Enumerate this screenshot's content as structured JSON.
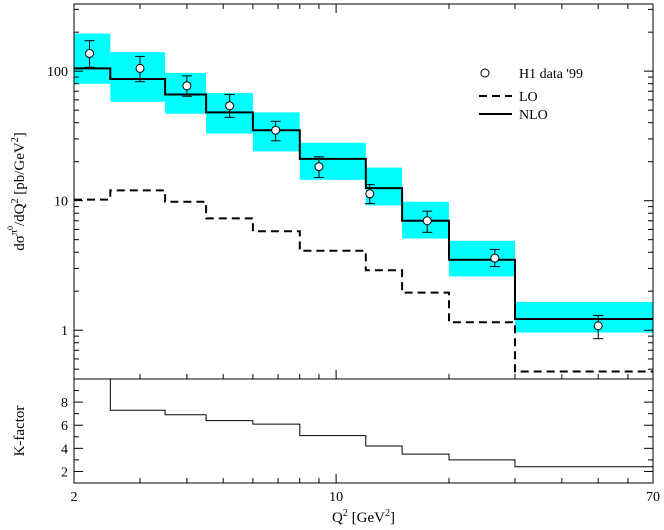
{
  "chart_data": [
    {
      "type": "line",
      "panel": "top",
      "xscale": "log",
      "yscale": "log",
      "xlim": [
        2,
        70
      ],
      "ylim": [
        0.42,
        330
      ],
      "ylabel": "dσ^π0/dQ^2 [pb/GeV^2]",
      "yticks": [
        1,
        10,
        100
      ],
      "ytick_labels": [
        "1",
        "10",
        "100"
      ],
      "bin_edges": [
        2,
        2.5,
        3.5,
        4.5,
        6,
        8,
        12,
        15,
        20,
        30,
        70
      ],
      "series": [
        {
          "name": "H1 data '99",
          "kind": "points",
          "x": [
            2.2,
            3.0,
            4.0,
            5.2,
            6.9,
            9.0,
            12.3,
            17.5,
            26.5,
            50.0
          ],
          "y": [
            137,
            105,
            77,
            54,
            35,
            18.3,
            11.3,
            7.0,
            3.6,
            1.08
          ],
          "yerr_low": [
            30,
            22,
            13,
            10,
            6,
            3.2,
            1.8,
            1.3,
            0.5,
            0.22
          ],
          "yerr_high": [
            35,
            25,
            15,
            12,
            6,
            3.5,
            2.0,
            1.3,
            0.6,
            0.22
          ]
        },
        {
          "name": "LO",
          "kind": "step",
          "style": "dashed",
          "values": [
            10.2,
            12.0,
            9.8,
            7.3,
            5.8,
            4.1,
            2.9,
            1.95,
            1.15,
            0.48
          ]
        },
        {
          "name": "NLO",
          "kind": "step",
          "style": "solid",
          "values": [
            105,
            87,
            66,
            48,
            35,
            21,
            12.5,
            7.0,
            3.5,
            1.22
          ],
          "band_low": [
            80,
            58,
            47,
            33,
            24,
            14.5,
            9.2,
            5.1,
            2.6,
            0.96
          ],
          "band_high": [
            195,
            140,
            97,
            68,
            48,
            28,
            18,
            9.8,
            4.9,
            1.65
          ]
        }
      ],
      "band_color": "#00ffff"
    },
    {
      "type": "line",
      "panel": "bottom",
      "xscale": "log",
      "xlim": [
        2,
        70
      ],
      "ylim": [
        1,
        10
      ],
      "xlabel": "Q^2 [GeV^2]",
      "ylabel": "K-factor",
      "yticks": [
        2,
        4,
        6,
        8
      ],
      "ytick_labels": [
        "2",
        "4",
        "6",
        "8"
      ],
      "xticks": [
        2,
        10,
        70
      ],
      "xtick_labels": [
        "2",
        "10",
        "70"
      ],
      "bin_edges": [
        2.5,
        3.5,
        4.5,
        6,
        8,
        12,
        15,
        20,
        30,
        70
      ],
      "series": [
        {
          "name": "K-factor",
          "kind": "step",
          "values": [
            7.3,
            6.9,
            6.4,
            6.1,
            5.1,
            4.2,
            3.5,
            3.0,
            2.4
          ]
        }
      ]
    }
  ]
}
